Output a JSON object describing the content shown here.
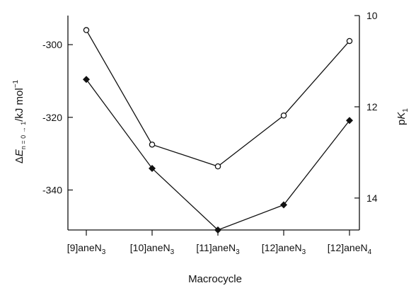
{
  "chart_data": {
    "type": "line",
    "categories": [
      "[9]aneN3",
      "[10]aneN3",
      "[11]aneN3",
      "[12]aneN3",
      "[12]aneN4"
    ],
    "category_labels": [
      {
        "base": "[9]aneN",
        "sub": "3"
      },
      {
        "base": "[10]aneN",
        "sub": "3"
      },
      {
        "base": "[11]aneN",
        "sub": "3"
      },
      {
        "base": "[12]aneN",
        "sub": "3"
      },
      {
        "base": "[12]aneN",
        "sub": "4"
      }
    ],
    "xlabel": "Macrocycle",
    "ylabel_left": {
      "delta": "Δ",
      "E": "E",
      "sub": "n = 0 → 1",
      "unit": "/kJ mol",
      "sup": "−1"
    },
    "ylabel_right": {
      "p": "p",
      "K": "K",
      "sub": "1"
    },
    "left_axis": {
      "ylim": [
        -351,
        -292
      ],
      "ticks": [
        -300,
        -320,
        -340
      ],
      "tick_labels": [
        "-300",
        "-320",
        "-340"
      ]
    },
    "right_axis": {
      "ylim": [
        10,
        14.7
      ],
      "ticks": [
        10,
        12,
        14
      ],
      "tick_labels": [
        "10",
        "12",
        "14"
      ],
      "inverted": true
    },
    "series": [
      {
        "axis": "left",
        "marker": "open-circle",
        "color": "#111111",
        "values": [
          -296,
          -327.5,
          -333.5,
          -319.5,
          -299
        ]
      },
      {
        "axis": "right",
        "marker": "filled-diamond",
        "color": "#111111",
        "values": [
          11.4,
          13.35,
          14.7,
          14.15,
          12.3
        ]
      }
    ],
    "grid": false
  }
}
